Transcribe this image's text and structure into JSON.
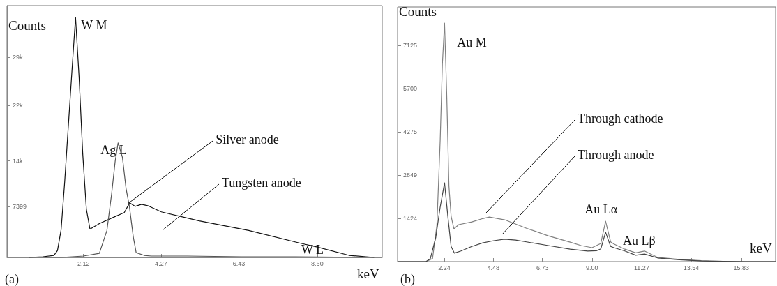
{
  "chart_data": [
    {
      "type": "line",
      "title": "(a)",
      "xlabel": "keV",
      "ylabel": "Counts",
      "xlim": [
        0,
        10.4
      ],
      "ylim": [
        0,
        36500
      ],
      "xticks": [
        2.12,
        4.27,
        6.43,
        {
          "value": 8.6,
          "label": "8.60"
        }
      ],
      "yticks": [
        7399,
        {
          "value": 14000,
          "label": "14k"
        },
        {
          "value": 22000,
          "label": "22k"
        },
        {
          "value": 29000,
          "label": "29k"
        }
      ],
      "line_style": "solid",
      "series": [
        {
          "color": "#111111",
          "x": [
            0.6,
            1.0,
            1.3,
            1.4,
            1.5,
            1.6,
            1.7,
            1.8,
            1.9,
            2.0,
            2.1,
            2.2,
            2.3,
            2.56,
            2.9,
            3.25,
            3.4,
            3.55,
            3.73,
            3.9,
            4.28,
            5.33,
            6.7,
            8.1,
            8.6,
            9.48,
            10.17
          ],
          "values": [
            0,
            100,
            300,
            1000,
            4000,
            11000,
            19000,
            27000,
            34800,
            26000,
            15000,
            7000,
            4100,
            4900,
            5700,
            6500,
            7900,
            7400,
            7700,
            7500,
            6600,
            5300,
            3900,
            2100,
            1500,
            300,
            0
          ]
        },
        {
          "color": "#555555",
          "x": [
            0.6,
            1.5,
            2.12,
            2.56,
            2.77,
            2.9,
            3.0,
            3.08,
            3.2,
            3.3,
            3.39,
            3.5,
            3.58,
            3.8,
            4.0,
            5.0,
            6.5,
            8.0,
            10.2
          ],
          "values": [
            0,
            0,
            200,
            600,
            3900,
            9200,
            14000,
            16600,
            14500,
            10000,
            7500,
            3000,
            700,
            300,
            200,
            200,
            100,
            100,
            0
          ]
        }
      ],
      "annotations": [
        {
          "text": "W M",
          "x": 1.9,
          "y": 34800
        },
        {
          "text": "Ag L",
          "x": 3.08,
          "y": 16600
        },
        {
          "text": "Silver anode",
          "x": 3.35,
          "y": 7800
        },
        "Tungsten anode",
        {
          "text": "W L",
          "x": 8.6,
          "y": 1500
        }
      ]
    },
    {
      "type": "line",
      "title": "(b)",
      "xlabel": "keV",
      "ylabel": "Counts",
      "xlim": [
        0.1,
        17.4
      ],
      "ylim": [
        0,
        8400
      ],
      "xticks": [
        2.24,
        4.48,
        6.73,
        {
          "value": 9,
          "label": "9.00"
        },
        11.27,
        13.54,
        15.83
      ],
      "yticks": [
        1424,
        2849,
        4275,
        5700,
        7125
      ],
      "line_style": "solid",
      "series": [
        {
          "color": "#808080",
          "x": [
            0.1,
            1.4,
            1.7,
            1.9,
            2.05,
            2.15,
            2.25,
            2.35,
            2.45,
            2.55,
            2.68,
            2.9,
            3.5,
            4.0,
            4.3,
            5,
            6,
            7,
            8,
            8.5,
            9,
            9.4,
            9.62,
            9.85,
            10,
            10.5,
            11,
            11.4,
            12,
            13,
            14,
            15,
            16,
            17.4
          ],
          "values": [
            0,
            0,
            100,
            1200,
            4000,
            6500,
            7870,
            5500,
            2500,
            1500,
            1080,
            1220,
            1310,
            1420,
            1470,
            1380,
            1100,
            850,
            640,
            530,
            460,
            600,
            1330,
            650,
            580,
            410,
            290,
            350,
            140,
            70,
            30,
            10,
            0,
            0
          ]
        },
        {
          "color": "#444444",
          "x": [
            0.1,
            1.4,
            1.6,
            1.85,
            2.05,
            2.25,
            2.4,
            2.55,
            2.7,
            3,
            3.5,
            4,
            4.5,
            5,
            5.5,
            6,
            7,
            8,
            8.8,
            9.2,
            9.4,
            9.62,
            9.85,
            10,
            10.5,
            11,
            11.4,
            12,
            13,
            14,
            15,
            16,
            17.4
          ],
          "values": [
            0,
            0,
            100,
            800,
            1800,
            2600,
            1500,
            500,
            280,
            350,
            500,
            620,
            690,
            740,
            710,
            650,
            530,
            410,
            350,
            360,
            420,
            970,
            500,
            460,
            350,
            210,
            250,
            120,
            60,
            20,
            10,
            0,
            0
          ]
        }
      ],
      "annotations": [
        {
          "text": "Au M",
          "x": 2.25,
          "y": 7870
        },
        "Through cathode",
        "Through anode",
        {
          "text": "Au Lα",
          "x": 9.62,
          "y": 1330
        },
        {
          "text": "Au Lβ",
          "x": 11.4,
          "y": 350
        }
      ]
    }
  ]
}
